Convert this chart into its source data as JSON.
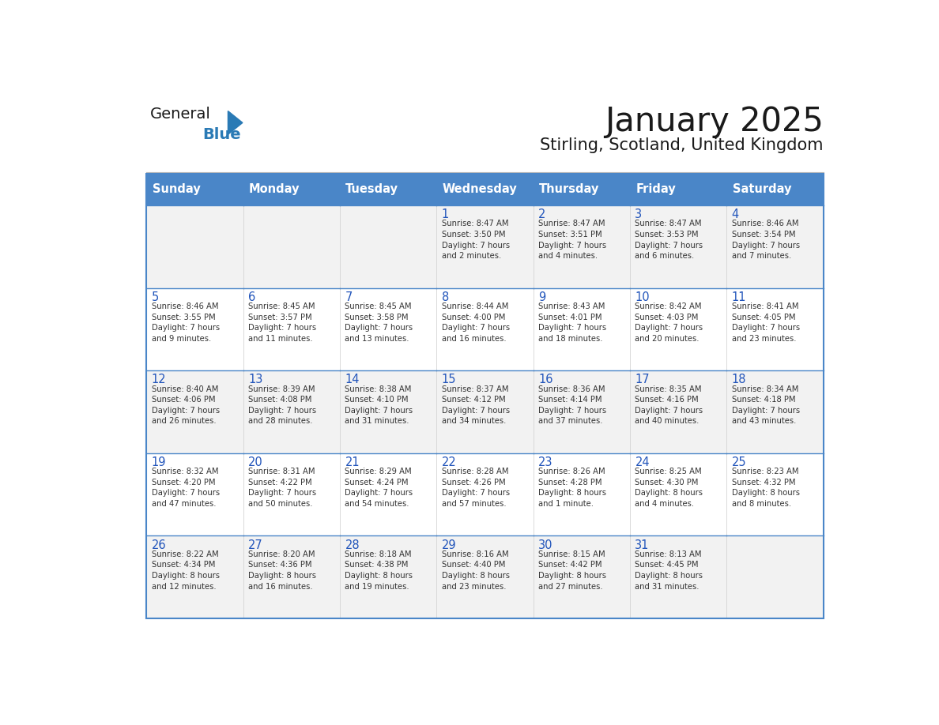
{
  "title": "January 2025",
  "subtitle": "Stirling, Scotland, United Kingdom",
  "days_of_week": [
    "Sunday",
    "Monday",
    "Tuesday",
    "Wednesday",
    "Thursday",
    "Friday",
    "Saturday"
  ],
  "header_bg": "#4A86C8",
  "header_text_color": "#FFFFFF",
  "cell_bg_odd": "#F2F2F2",
  "cell_bg_even": "#FFFFFF",
  "border_color": "#4A86C8",
  "title_color": "#1a1a1a",
  "subtitle_color": "#1a1a1a",
  "day_num_color": "#2255bb",
  "cell_text_color": "#333333",
  "logo_general_color": "#1a1a1a",
  "logo_blue_color": "#2a7ab5",
  "calendar": [
    [
      {
        "day": null,
        "info": ""
      },
      {
        "day": null,
        "info": ""
      },
      {
        "day": null,
        "info": ""
      },
      {
        "day": 1,
        "info": "Sunrise: 8:47 AM\nSunset: 3:50 PM\nDaylight: 7 hours\nand 2 minutes."
      },
      {
        "day": 2,
        "info": "Sunrise: 8:47 AM\nSunset: 3:51 PM\nDaylight: 7 hours\nand 4 minutes."
      },
      {
        "day": 3,
        "info": "Sunrise: 8:47 AM\nSunset: 3:53 PM\nDaylight: 7 hours\nand 6 minutes."
      },
      {
        "day": 4,
        "info": "Sunrise: 8:46 AM\nSunset: 3:54 PM\nDaylight: 7 hours\nand 7 minutes."
      }
    ],
    [
      {
        "day": 5,
        "info": "Sunrise: 8:46 AM\nSunset: 3:55 PM\nDaylight: 7 hours\nand 9 minutes."
      },
      {
        "day": 6,
        "info": "Sunrise: 8:45 AM\nSunset: 3:57 PM\nDaylight: 7 hours\nand 11 minutes."
      },
      {
        "day": 7,
        "info": "Sunrise: 8:45 AM\nSunset: 3:58 PM\nDaylight: 7 hours\nand 13 minutes."
      },
      {
        "day": 8,
        "info": "Sunrise: 8:44 AM\nSunset: 4:00 PM\nDaylight: 7 hours\nand 16 minutes."
      },
      {
        "day": 9,
        "info": "Sunrise: 8:43 AM\nSunset: 4:01 PM\nDaylight: 7 hours\nand 18 minutes."
      },
      {
        "day": 10,
        "info": "Sunrise: 8:42 AM\nSunset: 4:03 PM\nDaylight: 7 hours\nand 20 minutes."
      },
      {
        "day": 11,
        "info": "Sunrise: 8:41 AM\nSunset: 4:05 PM\nDaylight: 7 hours\nand 23 minutes."
      }
    ],
    [
      {
        "day": 12,
        "info": "Sunrise: 8:40 AM\nSunset: 4:06 PM\nDaylight: 7 hours\nand 26 minutes."
      },
      {
        "day": 13,
        "info": "Sunrise: 8:39 AM\nSunset: 4:08 PM\nDaylight: 7 hours\nand 28 minutes."
      },
      {
        "day": 14,
        "info": "Sunrise: 8:38 AM\nSunset: 4:10 PM\nDaylight: 7 hours\nand 31 minutes."
      },
      {
        "day": 15,
        "info": "Sunrise: 8:37 AM\nSunset: 4:12 PM\nDaylight: 7 hours\nand 34 minutes."
      },
      {
        "day": 16,
        "info": "Sunrise: 8:36 AM\nSunset: 4:14 PM\nDaylight: 7 hours\nand 37 minutes."
      },
      {
        "day": 17,
        "info": "Sunrise: 8:35 AM\nSunset: 4:16 PM\nDaylight: 7 hours\nand 40 minutes."
      },
      {
        "day": 18,
        "info": "Sunrise: 8:34 AM\nSunset: 4:18 PM\nDaylight: 7 hours\nand 43 minutes."
      }
    ],
    [
      {
        "day": 19,
        "info": "Sunrise: 8:32 AM\nSunset: 4:20 PM\nDaylight: 7 hours\nand 47 minutes."
      },
      {
        "day": 20,
        "info": "Sunrise: 8:31 AM\nSunset: 4:22 PM\nDaylight: 7 hours\nand 50 minutes."
      },
      {
        "day": 21,
        "info": "Sunrise: 8:29 AM\nSunset: 4:24 PM\nDaylight: 7 hours\nand 54 minutes."
      },
      {
        "day": 22,
        "info": "Sunrise: 8:28 AM\nSunset: 4:26 PM\nDaylight: 7 hours\nand 57 minutes."
      },
      {
        "day": 23,
        "info": "Sunrise: 8:26 AM\nSunset: 4:28 PM\nDaylight: 8 hours\nand 1 minute."
      },
      {
        "day": 24,
        "info": "Sunrise: 8:25 AM\nSunset: 4:30 PM\nDaylight: 8 hours\nand 4 minutes."
      },
      {
        "day": 25,
        "info": "Sunrise: 8:23 AM\nSunset: 4:32 PM\nDaylight: 8 hours\nand 8 minutes."
      }
    ],
    [
      {
        "day": 26,
        "info": "Sunrise: 8:22 AM\nSunset: 4:34 PM\nDaylight: 8 hours\nand 12 minutes."
      },
      {
        "day": 27,
        "info": "Sunrise: 8:20 AM\nSunset: 4:36 PM\nDaylight: 8 hours\nand 16 minutes."
      },
      {
        "day": 28,
        "info": "Sunrise: 8:18 AM\nSunset: 4:38 PM\nDaylight: 8 hours\nand 19 minutes."
      },
      {
        "day": 29,
        "info": "Sunrise: 8:16 AM\nSunset: 4:40 PM\nDaylight: 8 hours\nand 23 minutes."
      },
      {
        "day": 30,
        "info": "Sunrise: 8:15 AM\nSunset: 4:42 PM\nDaylight: 8 hours\nand 27 minutes."
      },
      {
        "day": 31,
        "info": "Sunrise: 8:13 AM\nSunset: 4:45 PM\nDaylight: 8 hours\nand 31 minutes."
      },
      {
        "day": null,
        "info": ""
      }
    ]
  ]
}
